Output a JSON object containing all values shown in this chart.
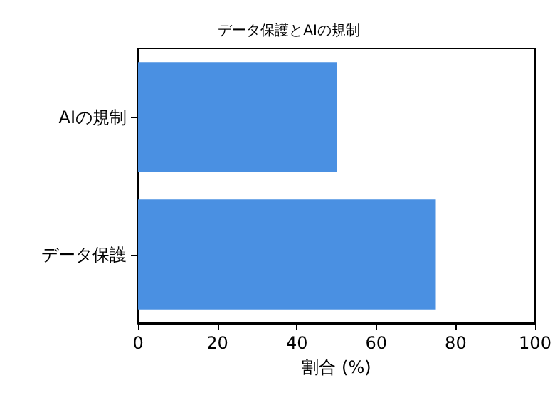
{
  "chart_data": {
    "type": "bar",
    "orientation": "horizontal",
    "title": "データ保護とAIの規制",
    "xlabel": "割合 (%)",
    "categories": [
      "AIの規制",
      "データ保護"
    ],
    "values": [
      50,
      75
    ],
    "color": "#4a90e2",
    "xlim": [
      0,
      100
    ],
    "xticks": [
      0,
      20,
      40,
      60,
      80,
      100
    ],
    "grid": false
  }
}
